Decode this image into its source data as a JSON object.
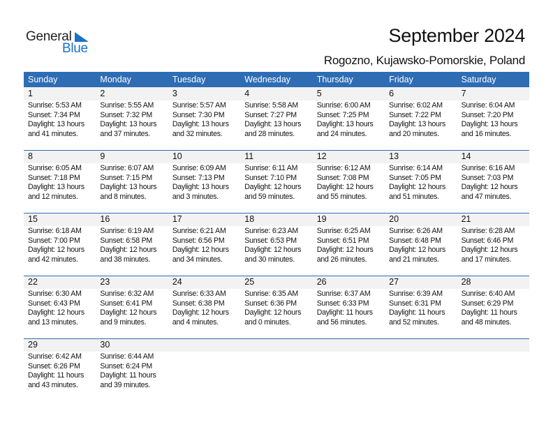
{
  "logo": {
    "text1": "General",
    "text2": "Blue",
    "accent": "#1a73c8"
  },
  "title": "September 2024",
  "subtitle": "Rogozno, Kujawsko-Pomorskie, Poland",
  "colors": {
    "header": "#2e6db4",
    "band": "#f2f2f2"
  },
  "weekdays": [
    "Sunday",
    "Monday",
    "Tuesday",
    "Wednesday",
    "Thursday",
    "Friday",
    "Saturday"
  ],
  "weeks": [
    [
      {
        "day": "1",
        "sunrise": "Sunrise: 5:53 AM",
        "sunset": "Sunset: 7:34 PM",
        "daylight": "Daylight: 13 hours",
        "minutes": "and 41 minutes."
      },
      {
        "day": "2",
        "sunrise": "Sunrise: 5:55 AM",
        "sunset": "Sunset: 7:32 PM",
        "daylight": "Daylight: 13 hours",
        "minutes": "and 37 minutes."
      },
      {
        "day": "3",
        "sunrise": "Sunrise: 5:57 AM",
        "sunset": "Sunset: 7:30 PM",
        "daylight": "Daylight: 13 hours",
        "minutes": "and 32 minutes."
      },
      {
        "day": "4",
        "sunrise": "Sunrise: 5:58 AM",
        "sunset": "Sunset: 7:27 PM",
        "daylight": "Daylight: 13 hours",
        "minutes": "and 28 minutes."
      },
      {
        "day": "5",
        "sunrise": "Sunrise: 6:00 AM",
        "sunset": "Sunset: 7:25 PM",
        "daylight": "Daylight: 13 hours",
        "minutes": "and 24 minutes."
      },
      {
        "day": "6",
        "sunrise": "Sunrise: 6:02 AM",
        "sunset": "Sunset: 7:22 PM",
        "daylight": "Daylight: 13 hours",
        "minutes": "and 20 minutes."
      },
      {
        "day": "7",
        "sunrise": "Sunrise: 6:04 AM",
        "sunset": "Sunset: 7:20 PM",
        "daylight": "Daylight: 13 hours",
        "minutes": "and 16 minutes."
      }
    ],
    [
      {
        "day": "8",
        "sunrise": "Sunrise: 6:05 AM",
        "sunset": "Sunset: 7:18 PM",
        "daylight": "Daylight: 13 hours",
        "minutes": "and 12 minutes."
      },
      {
        "day": "9",
        "sunrise": "Sunrise: 6:07 AM",
        "sunset": "Sunset: 7:15 PM",
        "daylight": "Daylight: 13 hours",
        "minutes": "and 8 minutes."
      },
      {
        "day": "10",
        "sunrise": "Sunrise: 6:09 AM",
        "sunset": "Sunset: 7:13 PM",
        "daylight": "Daylight: 13 hours",
        "minutes": "and 3 minutes."
      },
      {
        "day": "11",
        "sunrise": "Sunrise: 6:11 AM",
        "sunset": "Sunset: 7:10 PM",
        "daylight": "Daylight: 12 hours",
        "minutes": "and 59 minutes."
      },
      {
        "day": "12",
        "sunrise": "Sunrise: 6:12 AM",
        "sunset": "Sunset: 7:08 PM",
        "daylight": "Daylight: 12 hours",
        "minutes": "and 55 minutes."
      },
      {
        "day": "13",
        "sunrise": "Sunrise: 6:14 AM",
        "sunset": "Sunset: 7:05 PM",
        "daylight": "Daylight: 12 hours",
        "minutes": "and 51 minutes."
      },
      {
        "day": "14",
        "sunrise": "Sunrise: 6:16 AM",
        "sunset": "Sunset: 7:03 PM",
        "daylight": "Daylight: 12 hours",
        "minutes": "and 47 minutes."
      }
    ],
    [
      {
        "day": "15",
        "sunrise": "Sunrise: 6:18 AM",
        "sunset": "Sunset: 7:00 PM",
        "daylight": "Daylight: 12 hours",
        "minutes": "and 42 minutes."
      },
      {
        "day": "16",
        "sunrise": "Sunrise: 6:19 AM",
        "sunset": "Sunset: 6:58 PM",
        "daylight": "Daylight: 12 hours",
        "minutes": "and 38 minutes."
      },
      {
        "day": "17",
        "sunrise": "Sunrise: 6:21 AM",
        "sunset": "Sunset: 6:56 PM",
        "daylight": "Daylight: 12 hours",
        "minutes": "and 34 minutes."
      },
      {
        "day": "18",
        "sunrise": "Sunrise: 6:23 AM",
        "sunset": "Sunset: 6:53 PM",
        "daylight": "Daylight: 12 hours",
        "minutes": "and 30 minutes."
      },
      {
        "day": "19",
        "sunrise": "Sunrise: 6:25 AM",
        "sunset": "Sunset: 6:51 PM",
        "daylight": "Daylight: 12 hours",
        "minutes": "and 26 minutes."
      },
      {
        "day": "20",
        "sunrise": "Sunrise: 6:26 AM",
        "sunset": "Sunset: 6:48 PM",
        "daylight": "Daylight: 12 hours",
        "minutes": "and 21 minutes."
      },
      {
        "day": "21",
        "sunrise": "Sunrise: 6:28 AM",
        "sunset": "Sunset: 6:46 PM",
        "daylight": "Daylight: 12 hours",
        "minutes": "and 17 minutes."
      }
    ],
    [
      {
        "day": "22",
        "sunrise": "Sunrise: 6:30 AM",
        "sunset": "Sunset: 6:43 PM",
        "daylight": "Daylight: 12 hours",
        "minutes": "and 13 minutes."
      },
      {
        "day": "23",
        "sunrise": "Sunrise: 6:32 AM",
        "sunset": "Sunset: 6:41 PM",
        "daylight": "Daylight: 12 hours",
        "minutes": "and 9 minutes."
      },
      {
        "day": "24",
        "sunrise": "Sunrise: 6:33 AM",
        "sunset": "Sunset: 6:38 PM",
        "daylight": "Daylight: 12 hours",
        "minutes": "and 4 minutes."
      },
      {
        "day": "25",
        "sunrise": "Sunrise: 6:35 AM",
        "sunset": "Sunset: 6:36 PM",
        "daylight": "Daylight: 12 hours",
        "minutes": "and 0 minutes."
      },
      {
        "day": "26",
        "sunrise": "Sunrise: 6:37 AM",
        "sunset": "Sunset: 6:33 PM",
        "daylight": "Daylight: 11 hours",
        "minutes": "and 56 minutes."
      },
      {
        "day": "27",
        "sunrise": "Sunrise: 6:39 AM",
        "sunset": "Sunset: 6:31 PM",
        "daylight": "Daylight: 11 hours",
        "minutes": "and 52 minutes."
      },
      {
        "day": "28",
        "sunrise": "Sunrise: 6:40 AM",
        "sunset": "Sunset: 6:29 PM",
        "daylight": "Daylight: 11 hours",
        "minutes": "and 48 minutes."
      }
    ],
    [
      {
        "day": "29",
        "sunrise": "Sunrise: 6:42 AM",
        "sunset": "Sunset: 6:26 PM",
        "daylight": "Daylight: 11 hours",
        "minutes": "and 43 minutes."
      },
      {
        "day": "30",
        "sunrise": "Sunrise: 6:44 AM",
        "sunset": "Sunset: 6:24 PM",
        "daylight": "Daylight: 11 hours",
        "minutes": "and 39 minutes."
      }
    ]
  ]
}
